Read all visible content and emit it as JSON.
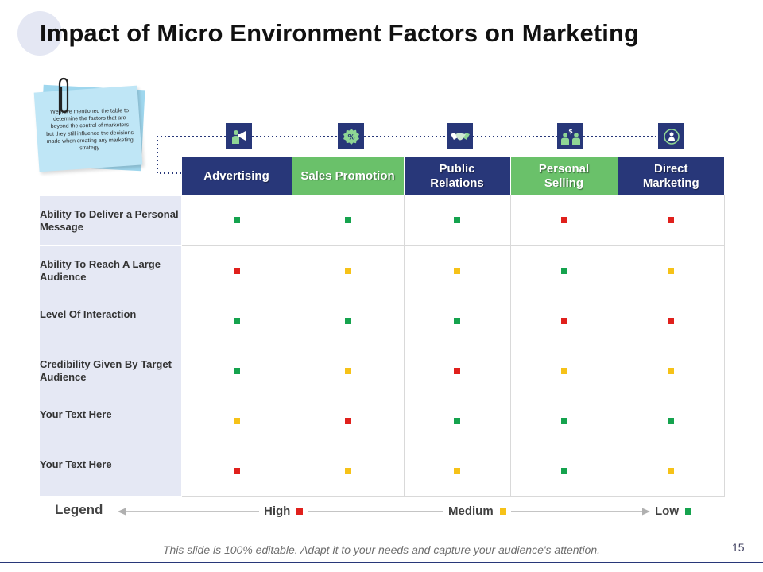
{
  "title": "Impact of Micro Environment Factors on Marketing",
  "note_text": "We have mentioned the table to determine the factors that are beyond the control of marketers but they still influence the decisions made when creating any marketing strategy.",
  "colors": {
    "navy": "#283779",
    "header_green": "#6ac16a",
    "high": "#e0201c",
    "medium": "#f6c218",
    "low": "#15a34e"
  },
  "columns": [
    {
      "label": "Advertising",
      "icon": "megaphone-person-icon",
      "color": "navy"
    },
    {
      "label": "Sales Promotion",
      "icon": "percent-badge-icon",
      "color": "green"
    },
    {
      "label": "Public Relations",
      "icon": "handshake-icon",
      "color": "navy"
    },
    {
      "label": "Personal Selling",
      "icon": "people-dollar-icon",
      "color": "green"
    },
    {
      "label": "Direct Marketing",
      "icon": "target-person-icon",
      "color": "navy"
    }
  ],
  "rows": [
    {
      "label": "Ability To Deliver a Personal Message",
      "ratings": [
        "low",
        "low",
        "low",
        "high",
        "high"
      ]
    },
    {
      "label": "Ability To Reach A Large Audience",
      "ratings": [
        "high",
        "medium",
        "medium",
        "low",
        "medium"
      ]
    },
    {
      "label": "Level Of Interaction",
      "ratings": [
        "low",
        "low",
        "low",
        "high",
        "high"
      ]
    },
    {
      "label": "Credibility Given By Target Audience",
      "ratings": [
        "low",
        "medium",
        "high",
        "medium",
        "medium"
      ]
    },
    {
      "label": "Your Text Here",
      "ratings": [
        "medium",
        "high",
        "low",
        "low",
        "low"
      ]
    },
    {
      "label": "Your Text Here",
      "ratings": [
        "high",
        "medium",
        "medium",
        "low",
        "medium"
      ]
    }
  ],
  "legend": {
    "title": "Legend",
    "items": [
      {
        "label": "High",
        "level": "high"
      },
      {
        "label": "Medium",
        "level": "medium"
      },
      {
        "label": "Low",
        "level": "low"
      }
    ]
  },
  "footer": "This slide is 100% editable. Adapt it to your needs and capture your audience's attention.",
  "page_number": "15"
}
